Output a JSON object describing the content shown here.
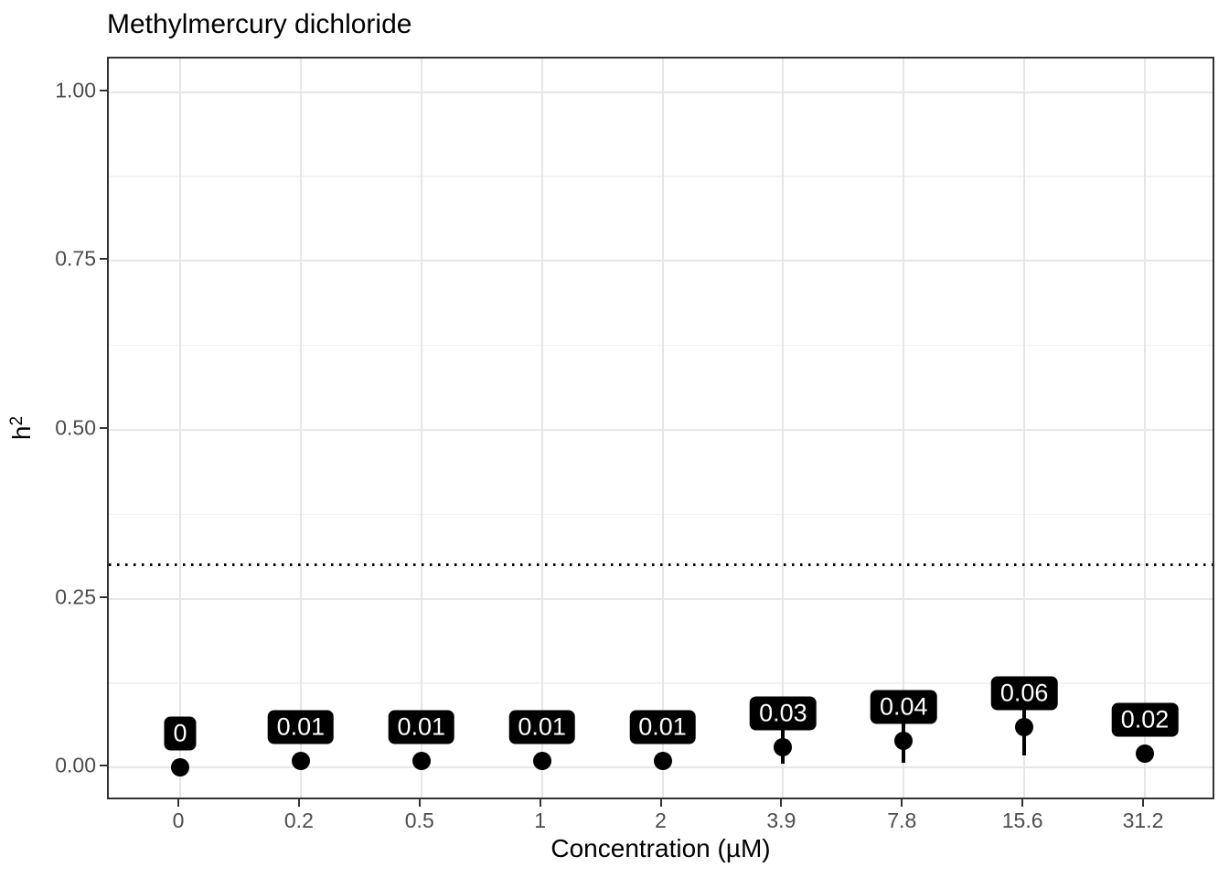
{
  "chart_data": {
    "type": "scatter",
    "subtype": "pointrange-with-labels",
    "title": "Methylmercury dichloride",
    "xlabel": "Concentration (µM)",
    "ylabel": "h²",
    "ylabel_base": "h",
    "ylabel_exponent": "2",
    "categories": [
      "0",
      "0.2",
      "0.5",
      "1",
      "2",
      "3.9",
      "7.8",
      "15.6",
      "31.2"
    ],
    "values": [
      0,
      0.01,
      0.01,
      0.01,
      0.01,
      0.03,
      0.04,
      0.06,
      0.02
    ],
    "point_labels": [
      "0",
      "0.01",
      "0.01",
      "0.01",
      "0.01",
      "0.03",
      "0.04",
      "0.06",
      "0.02"
    ],
    "error_low": [
      0,
      0.01,
      0.01,
      0.01,
      0.01,
      0.005,
      0.007,
      0.018,
      0.02
    ],
    "error_high": [
      0,
      0.01,
      0.01,
      0.01,
      0.01,
      0.055,
      0.073,
      0.102,
      0.02
    ],
    "reference_line_y": 0.3,
    "label_nudge_y": 0.05,
    "ylim": [
      -0.05,
      1.05
    ],
    "yticks": {
      "values": [
        0,
        0.25,
        0.5,
        0.75,
        1.0
      ],
      "labels": [
        "0.00",
        "0.25",
        "0.50",
        "0.75",
        "1.00"
      ]
    },
    "yticks_minor": [
      0.125,
      0.375,
      0.625,
      0.875
    ],
    "grid": "horizontal major+minor, vertical major at each category; no legend",
    "legend_position": "none",
    "colors": {
      "point": "#000000",
      "error_bar": "#000000",
      "label_background": "#000000",
      "label_text": "#ffffff",
      "reference_line": "#000000",
      "grid_major": "#e6e6e6",
      "grid_minor": "#f2f2f2",
      "panel_border": "#333333",
      "axis_tick_text": "#4d4d4d",
      "title_text": "#000000"
    }
  }
}
